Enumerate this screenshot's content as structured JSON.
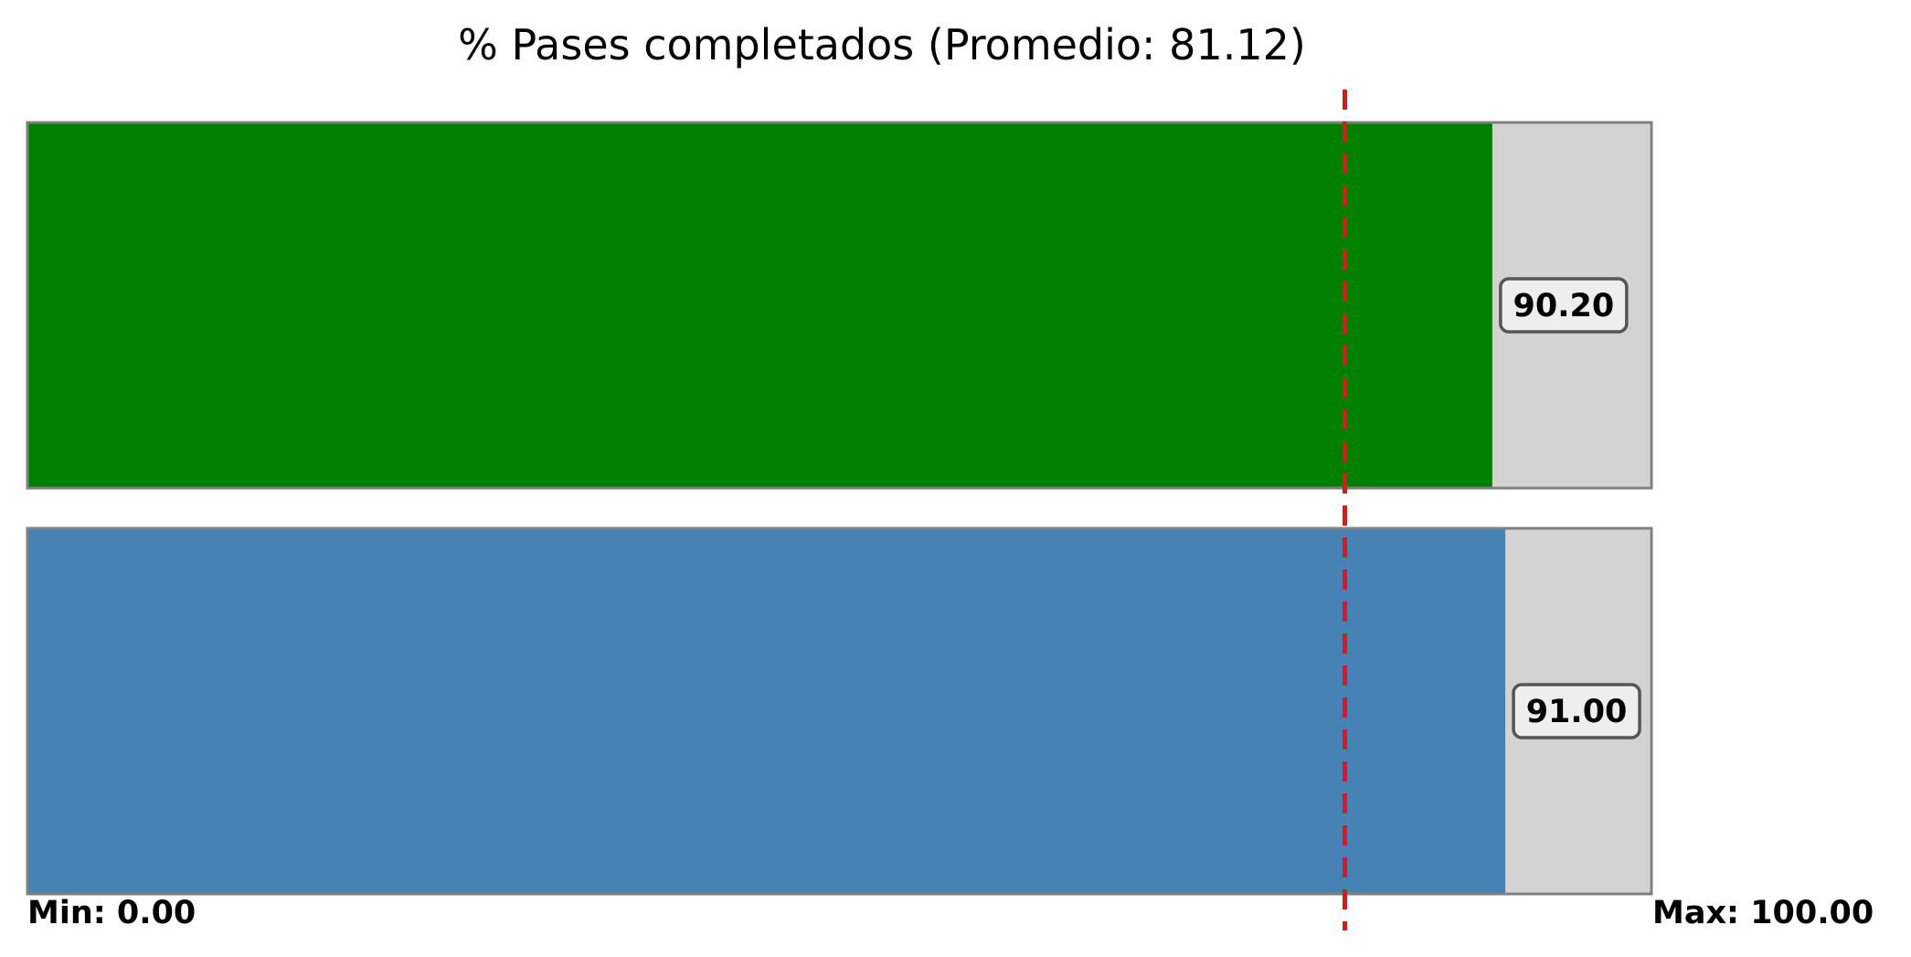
{
  "chart_data": {
    "type": "bar",
    "orientation": "horizontal",
    "title": "% Pases completados (Promedio: 81.12)",
    "xlim": [
      0,
      100
    ],
    "grid": false,
    "min_label": "Min: 0.00",
    "max_label": "Max: 100.00",
    "reference_line": {
      "value": 81.12,
      "color": "#e8141b",
      "style": "dashed"
    },
    "background_track_color": "#d3d3d3",
    "track_border_color": "#808080",
    "bars": [
      {
        "value": 90.2,
        "label": "90.20",
        "color": "#008000"
      },
      {
        "value": 91.0,
        "label": "91.00",
        "color": "#4682b4"
      }
    ]
  }
}
